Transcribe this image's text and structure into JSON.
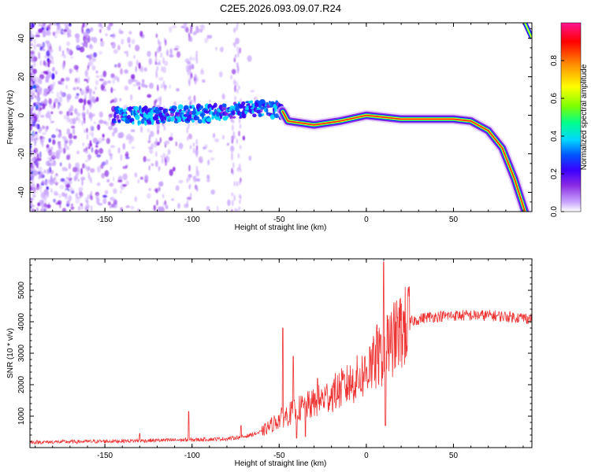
{
  "title": "C2E5.2026.093.09.07.R24",
  "chart_data": [
    {
      "type": "heatmap",
      "xlabel": "Height of straight line (km)",
      "ylabel": "Frequency (Hz)",
      "xlim": [
        -193,
        95
      ],
      "ylim": [
        -50,
        48
      ],
      "xticks": [
        -150,
        -100,
        -50,
        0,
        50
      ],
      "yticks": [
        -40,
        -20,
        0,
        20,
        40
      ],
      "colorbar": {
        "label": "Normalized spectral amplitude",
        "range": [
          0,
          1
        ],
        "ticks": [
          "0.0",
          "0.2",
          "0.4",
          "0.6",
          "0.8"
        ],
        "tick_values": [
          0,
          0.2,
          0.4,
          0.6,
          0.8
        ],
        "colors": [
          "#ffffff",
          "#c9a6ff",
          "#8a2be2",
          "#3a00ff",
          "#0055ff",
          "#00d6ff",
          "#00ff8c",
          "#7fff00",
          "#ffff00",
          "#ff8c00",
          "#ff0000",
          "#ff1493"
        ]
      },
      "track": [
        [
          -145,
          0
        ],
        [
          -120,
          0
        ],
        [
          -90,
          1
        ],
        [
          -60,
          4
        ],
        [
          -48,
          2
        ],
        [
          -45,
          -3
        ],
        [
          -30,
          -5
        ],
        [
          -15,
          -3
        ],
        [
          0,
          0
        ],
        [
          20,
          -2
        ],
        [
          50,
          -2
        ],
        [
          60,
          -3
        ],
        [
          70,
          -8
        ],
        [
          78,
          -17
        ],
        [
          85,
          -33
        ],
        [
          91,
          -50
        ]
      ],
      "track2": [
        [
          91,
          48
        ],
        [
          95,
          40
        ]
      ]
    },
    {
      "type": "line",
      "xlabel": "Height of straight line (km)",
      "ylabel": "SNR (10 * v/v)",
      "xlim": [
        -193,
        95
      ],
      "ylim": [
        0,
        6000
      ],
      "xticks": [
        -150,
        -100,
        -50,
        0,
        50
      ],
      "yticks": [
        1000,
        2000,
        3000,
        4000,
        5000
      ],
      "color": "#ee3333",
      "envelope": [
        [
          -193,
          170
        ],
        [
          -150,
          200
        ],
        [
          -130,
          220
        ],
        [
          -100,
          250
        ],
        [
          -80,
          280
        ],
        [
          -70,
          350
        ],
        [
          -60,
          500
        ],
        [
          -55,
          700
        ],
        [
          -50,
          900
        ],
        [
          -45,
          1050
        ],
        [
          -40,
          1200
        ],
        [
          -30,
          1400
        ],
        [
          -20,
          1700
        ],
        [
          -10,
          2000
        ],
        [
          0,
          2400
        ],
        [
          5,
          2700
        ],
        [
          10,
          3000
        ],
        [
          15,
          3400
        ],
        [
          20,
          3700
        ],
        [
          25,
          4000
        ],
        [
          35,
          4150
        ],
        [
          50,
          4200
        ],
        [
          70,
          4200
        ],
        [
          85,
          4150
        ],
        [
          95,
          4100
        ]
      ],
      "spikes": [
        [
          -130,
          450
        ],
        [
          -102,
          1150
        ],
        [
          -72,
          700
        ],
        [
          -48,
          3800
        ],
        [
          -42,
          2900
        ],
        [
          -40,
          2800
        ],
        [
          -35,
          2600
        ],
        [
          -28,
          2200
        ],
        [
          -10,
          2300
        ],
        [
          2,
          3200
        ],
        [
          6,
          3900
        ],
        [
          10,
          5900
        ],
        [
          12,
          4200
        ],
        [
          14,
          3000
        ]
      ],
      "dips": [
        [
          11,
          700
        ],
        [
          -40,
          300
        ],
        [
          -35,
          350
        ]
      ]
    }
  ]
}
